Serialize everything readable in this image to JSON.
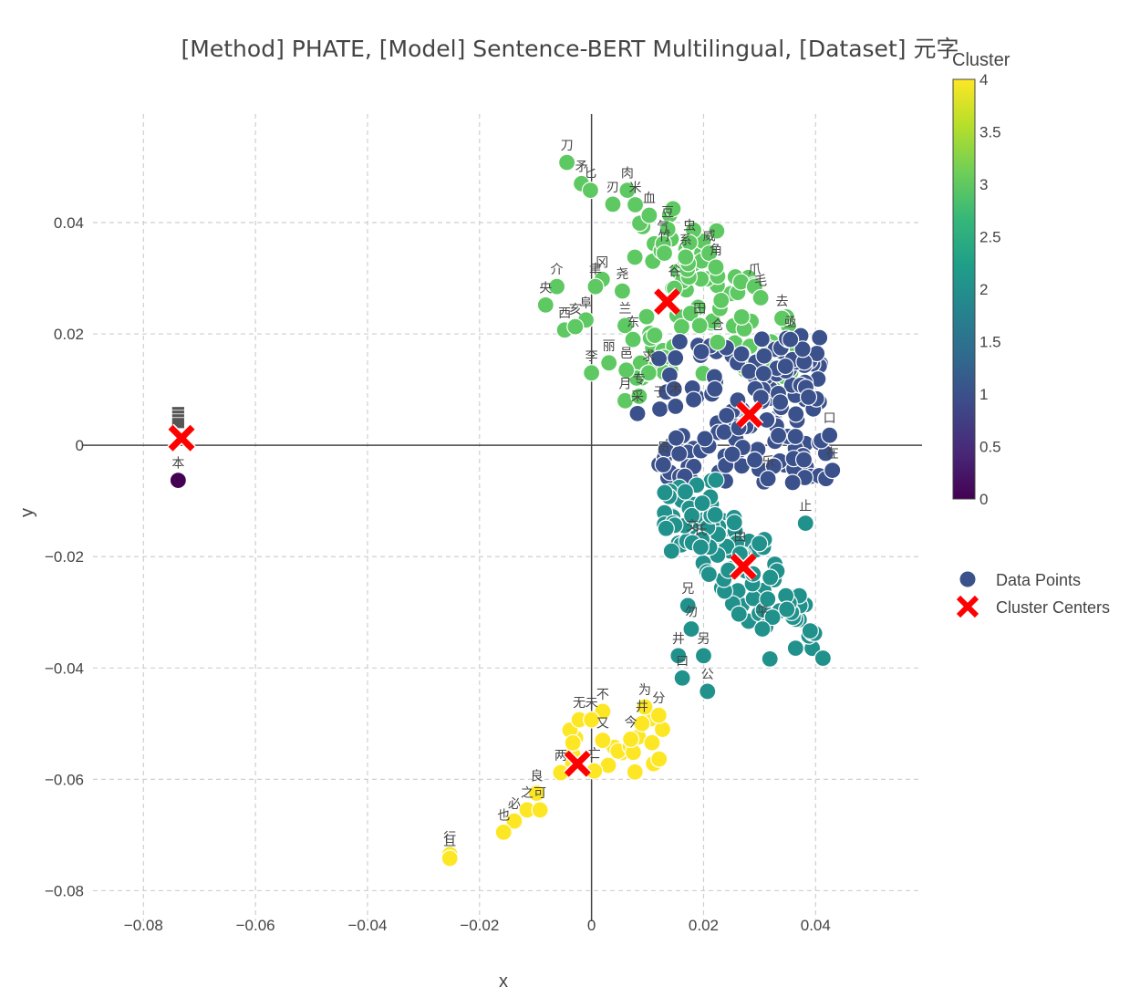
{
  "chart_data": {
    "type": "scatter",
    "title": "[Method] PHATE, [Model] Sentence-BERT Multilingual, [Dataset] 元字",
    "xlabel": "x",
    "ylabel": "y",
    "xlim": [
      -0.089,
      0.059
    ],
    "ylim": [
      -0.0855,
      0.0595
    ],
    "x_ticks": [
      -0.08,
      -0.06,
      -0.04,
      -0.02,
      0,
      0.02,
      0.04
    ],
    "x_tick_labels": [
      "−0.08",
      "−0.06",
      "−0.04",
      "−0.02",
      "0",
      "0.02",
      "0.04"
    ],
    "y_ticks": [
      -0.08,
      -0.06,
      -0.04,
      -0.02,
      0,
      0.02,
      0.04
    ],
    "y_tick_labels": [
      "−0.08",
      "−0.06",
      "−0.04",
      "−0.02",
      "0",
      "0.02",
      "0.04"
    ],
    "grid": true,
    "colorbar": {
      "title": "Cluster",
      "min": 0,
      "max": 4,
      "ticks": [
        0,
        0.5,
        1,
        1.5,
        2,
        2.5,
        3,
        3.5,
        4
      ],
      "tick_labels": [
        "0",
        "0.5",
        "1",
        "1.5",
        "2",
        "2.5",
        "3",
        "3.5",
        "4"
      ],
      "colors": [
        "#440154",
        "#482878",
        "#3e4989",
        "#31688e",
        "#26828e",
        "#1f9e89",
        "#35b779",
        "#6ece58",
        "#b5de2b",
        "#fde725"
      ]
    },
    "legend": {
      "position": "right",
      "entries": [
        {
          "name": "Data Points",
          "marker": "circle",
          "color": "#3b518b"
        },
        {
          "name": "Cluster Centers",
          "marker": "x",
          "color": "#ff0000"
        }
      ]
    },
    "cluster_colors": {
      "0": "#440154",
      "1": "#3b518b",
      "2": "#21918c",
      "3": "#5ec962",
      "4": "#fde725"
    },
    "centers": [
      {
        "cluster": 0,
        "x": -0.0732,
        "y": 0.0013
      },
      {
        "cluster": 1,
        "x": 0.0282,
        "y": 0.0055
      },
      {
        "cluster": 2,
        "x": 0.0271,
        "y": -0.0218
      },
      {
        "cluster": 3,
        "x": 0.0135,
        "y": 0.0258
      },
      {
        "cluster": 4,
        "x": -0.0025,
        "y": -0.0572
      }
    ],
    "labeled_points": [
      {
        "label": "刀",
        "x": -0.0044,
        "y": 0.0508,
        "cluster": 3
      },
      {
        "label": "矛",
        "x": -0.0018,
        "y": 0.047,
        "cluster": 3
      },
      {
        "label": "匕",
        "x": -0.0002,
        "y": 0.0458,
        "cluster": 3
      },
      {
        "label": "刃",
        "x": 0.0038,
        "y": 0.0433,
        "cluster": 3
      },
      {
        "label": "肉",
        "x": 0.0064,
        "y": 0.0458,
        "cluster": 3
      },
      {
        "label": "米",
        "x": 0.0078,
        "y": 0.0432,
        "cluster": 3
      },
      {
        "label": "血",
        "x": 0.0103,
        "y": 0.0413,
        "cluster": 3
      },
      {
        "label": "豆",
        "x": 0.0136,
        "y": 0.0388,
        "cluster": 3
      },
      {
        "label": "气",
        "x": 0.0128,
        "y": 0.0362,
        "cluster": 3
      },
      {
        "label": "虫",
        "x": 0.0175,
        "y": 0.0364,
        "cluster": 3
      },
      {
        "label": "竹",
        "x": 0.013,
        "y": 0.0345,
        "cluster": 3
      },
      {
        "label": "系",
        "x": 0.0168,
        "y": 0.0338,
        "cluster": 3
      },
      {
        "label": "威",
        "x": 0.021,
        "y": 0.0345,
        "cluster": 3
      },
      {
        "label": "角",
        "x": 0.0222,
        "y": 0.032,
        "cluster": 3
      },
      {
        "label": "介",
        "x": -0.0062,
        "y": 0.0285,
        "cluster": 3
      },
      {
        "label": "央",
        "x": -0.0082,
        "y": 0.0252,
        "cluster": 3
      },
      {
        "label": "冈",
        "x": 0.0019,
        "y": 0.0298,
        "cluster": 3
      },
      {
        "label": "聿",
        "x": 0.0007,
        "y": 0.0285,
        "cluster": 3
      },
      {
        "label": "尧",
        "x": 0.0055,
        "y": 0.0277,
        "cluster": 3
      },
      {
        "label": "谷",
        "x": 0.0148,
        "y": 0.0282,
        "cluster": 3
      },
      {
        "label": "爪",
        "x": 0.0291,
        "y": 0.0285,
        "cluster": 3
      },
      {
        "label": "毛",
        "x": 0.0302,
        "y": 0.0265,
        "cluster": 3
      },
      {
        "label": "阜",
        "x": -0.001,
        "y": 0.0225,
        "cluster": 3
      },
      {
        "label": "西",
        "x": -0.0048,
        "y": 0.0207,
        "cluster": 3
      },
      {
        "label": "亥",
        "x": -0.0029,
        "y": 0.0213,
        "cluster": 3
      },
      {
        "label": "兰",
        "x": 0.006,
        "y": 0.0215,
        "cluster": 3
      },
      {
        "label": "东",
        "x": 0.0074,
        "y": 0.019,
        "cluster": 3
      },
      {
        "label": "田",
        "x": 0.0193,
        "y": 0.0215,
        "cluster": 3
      },
      {
        "label": "仓",
        "x": 0.0225,
        "y": 0.0185,
        "cluster": 3
      },
      {
        "label": "去",
        "x": 0.034,
        "y": 0.0228,
        "cluster": 3
      },
      {
        "label": "亟",
        "x": 0.0355,
        "y": 0.019,
        "cluster": 1
      },
      {
        "label": "李",
        "x": 0.0,
        "y": 0.013,
        "cluster": 3
      },
      {
        "label": "丽",
        "x": 0.0031,
        "y": 0.0148,
        "cluster": 3
      },
      {
        "label": "邑",
        "x": 0.0062,
        "y": 0.0135,
        "cluster": 3
      },
      {
        "label": "求",
        "x": 0.0102,
        "y": 0.013,
        "cluster": 3
      },
      {
        "label": "月",
        "x": 0.006,
        "y": 0.008,
        "cluster": 3
      },
      {
        "label": "专",
        "x": 0.0085,
        "y": 0.0088,
        "cluster": 3
      },
      {
        "label": "采",
        "x": 0.0082,
        "y": 0.0057,
        "cluster": 1
      },
      {
        "label": "于",
        "x": 0.0122,
        "y": 0.0065,
        "cluster": 1
      },
      {
        "label": "术",
        "x": 0.015,
        "y": 0.007,
        "cluster": 1
      },
      {
        "label": "口",
        "x": 0.0425,
        "y": 0.0018,
        "cluster": 1
      },
      {
        "label": "在",
        "x": 0.043,
        "y": -0.0045,
        "cluster": 1
      },
      {
        "label": "员",
        "x": 0.0128,
        "y": -0.0035,
        "cluster": 1
      },
      {
        "label": "乐",
        "x": 0.0315,
        "y": -0.006,
        "cluster": 1
      },
      {
        "label": "交",
        "x": 0.018,
        "y": -0.0175,
        "cluster": 2
      },
      {
        "label": "氏",
        "x": 0.0195,
        "y": -0.0183,
        "cluster": 2
      },
      {
        "label": "止",
        "x": 0.0382,
        "y": -0.014,
        "cluster": 2
      },
      {
        "label": "由",
        "x": 0.0265,
        "y": -0.0195,
        "cluster": 2
      },
      {
        "label": "兄",
        "x": 0.0172,
        "y": -0.0288,
        "cluster": 2
      },
      {
        "label": "勿",
        "x": 0.0178,
        "y": -0.033,
        "cluster": 2
      },
      {
        "label": "井",
        "x": 0.0155,
        "y": -0.0378,
        "cluster": 2
      },
      {
        "label": "另",
        "x": 0.02,
        "y": -0.0378,
        "cluster": 2
      },
      {
        "label": "曰",
        "x": 0.0162,
        "y": -0.0418,
        "cluster": 2
      },
      {
        "label": "公",
        "x": 0.0207,
        "y": -0.0442,
        "cluster": 2
      },
      {
        "label": "平",
        "x": 0.0305,
        "y": -0.033,
        "cluster": 2
      },
      {
        "label": "为",
        "x": 0.0095,
        "y": -0.047,
        "cluster": 4
      },
      {
        "label": "分",
        "x": 0.012,
        "y": -0.0485,
        "cluster": 4
      },
      {
        "label": "不",
        "x": 0.002,
        "y": -0.0478,
        "cluster": 4
      },
      {
        "label": "无",
        "x": -0.0022,
        "y": -0.0493,
        "cluster": 4
      },
      {
        "label": "未",
        "x": 0.0,
        "y": -0.0493,
        "cluster": 4
      },
      {
        "label": "井",
        "x": 0.009,
        "y": -0.05,
        "cluster": 4
      },
      {
        "label": "又",
        "x": 0.002,
        "y": -0.053,
        "cluster": 4
      },
      {
        "label": "今",
        "x": 0.007,
        "y": -0.0528,
        "cluster": 4
      },
      {
        "label": "两",
        "x": -0.0055,
        "y": -0.0588,
        "cluster": 4
      },
      {
        "label": "亡",
        "x": 0.0005,
        "y": -0.0585,
        "cluster": 4
      },
      {
        "label": "良",
        "x": -0.0098,
        "y": -0.0625,
        "cluster": 4
      },
      {
        "label": "之",
        "x": -0.0115,
        "y": -0.0655,
        "cluster": 4
      },
      {
        "label": "可",
        "x": -0.0092,
        "y": -0.0655,
        "cluster": 4
      },
      {
        "label": "必",
        "x": -0.0138,
        "y": -0.0675,
        "cluster": 4
      },
      {
        "label": "也",
        "x": -0.0157,
        "y": -0.0695,
        "cluster": 4
      },
      {
        "label": "行",
        "x": -0.0253,
        "y": -0.0735,
        "cluster": 4
      },
      {
        "label": "且",
        "x": -0.0253,
        "y": -0.0742,
        "cluster": 4
      },
      {
        "label": "本",
        "x": -0.0738,
        "y": -0.0063,
        "cluster": 0
      }
    ]
  }
}
